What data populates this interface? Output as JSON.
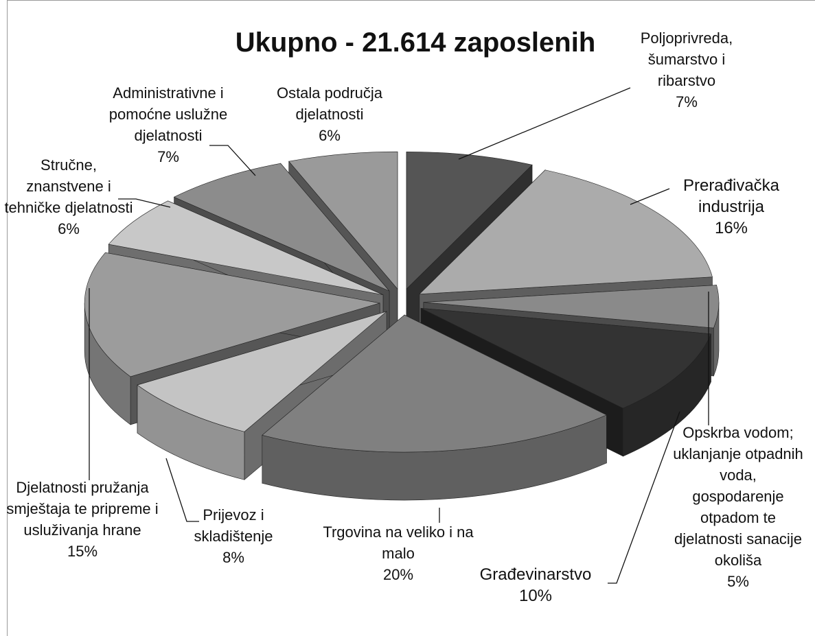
{
  "chart_data": {
    "type": "pie",
    "title": "Ukupno - 21.614 zaposlenih",
    "categories": [
      "Poljoprivreda, šumarstvo i ribarstvo",
      "Prerađivačka industrija",
      "Opskrba vodom; uklanjanje otpadnih voda, gospodarenje otpadom te djelatnosti sanacije okoliša",
      "Građevinarstvo",
      "Trgovina na veliko i na malo",
      "Prijevoz i skladištenje",
      "Djelatnosti pružanja smještaja te pripreme i usluživanja hrane",
      "Stručne, znanstvene i tehničke djelatnosti",
      "Administrativne i pomoćne uslužne djelatnosti",
      "Ostala područja djelatnosti"
    ],
    "values": [
      7,
      16,
      5,
      10,
      20,
      8,
      15,
      6,
      7,
      6
    ],
    "value_labels": [
      "7%",
      "16%",
      "5%",
      "10%",
      "20%",
      "8%",
      "15%",
      "6%",
      "7%",
      "6%"
    ],
    "colors": [
      "#555555",
      "#ababab",
      "#8a8a8a",
      "#333333",
      "#808080",
      "#c4c4c4",
      "#9c9c9c",
      "#c8c8c8",
      "#8c8c8c",
      "#9a9a9a"
    ]
  }
}
